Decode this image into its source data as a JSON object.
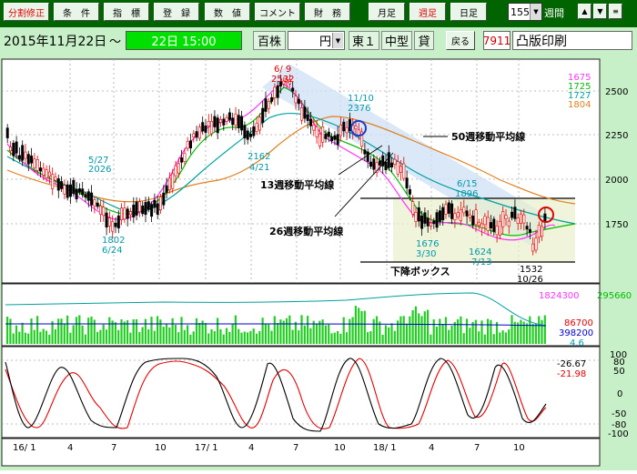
{
  "toolbar": {
    "buttons": [
      {
        "label": "分割修正",
        "red": true
      },
      {
        "label": "条　件",
        "red": false
      },
      {
        "label": "指　標",
        "red": false
      },
      {
        "label": "登　録",
        "red": false
      },
      {
        "label": "数　値",
        "red": false
      },
      {
        "label": "コメント",
        "red": false
      },
      {
        "label": "財　務",
        "red": false
      },
      {
        "label": "月足",
        "red": false
      },
      {
        "label": "週足",
        "red": true
      },
      {
        "label": "日足",
        "red": false
      }
    ],
    "period_count": "155",
    "period_unit": "週間",
    "up_arrow": "▲",
    "down_arrow": "▼",
    "menu": "≡"
  },
  "infobar": {
    "date": "2015年11月22日",
    "tilde": "～",
    "end": "22日 15:00",
    "unit": "百株",
    "currency": "円",
    "market": "東１",
    "size": "中型",
    "lending": "貸",
    "back_label": "戻る",
    "code": "7911",
    "name": "凸版印刷"
  },
  "price_panel": {
    "y_labels": [
      "2500",
      "2250",
      "2000",
      "1750"
    ],
    "legend": [
      {
        "text": "1675",
        "color": "#ff33ff"
      },
      {
        "text": "1725",
        "color": "#00bb00"
      },
      {
        "text": "1727",
        "color": "#00a0a0"
      },
      {
        "text": "1804",
        "color": "#e08020"
      }
    ],
    "annotations": [
      {
        "text": "6/ 9",
        "color": "#e00000"
      },
      {
        "text": "2532",
        "color": "#e00000"
      },
      {
        "text": "11/10",
        "color": "#0099aa"
      },
      {
        "text": "2376",
        "color": "#0099aa"
      },
      {
        "text": "5/27",
        "color": "#0099aa"
      },
      {
        "text": "2026",
        "color": "#0099aa"
      },
      {
        "text": "2162",
        "color": "#0099aa"
      },
      {
        "text": "4/21",
        "color": "#0099aa"
      },
      {
        "text": "1802",
        "color": "#0099aa"
      },
      {
        "text": "6/24",
        "color": "#0099aa"
      },
      {
        "text": "6/15",
        "color": "#0099aa"
      },
      {
        "text": "1896",
        "color": "#0099aa"
      },
      {
        "text": "1676",
        "color": "#0099aa"
      },
      {
        "text": "3/30",
        "color": "#0099aa"
      },
      {
        "text": "1624",
        "color": "#0099aa"
      },
      {
        "text": "7/13",
        "color": "#0099aa"
      },
      {
        "text": "1532",
        "color": "#000000"
      },
      {
        "text": "10/26",
        "color": "#000000"
      }
    ],
    "ma_labels": [
      "50週移動平均線",
      "13週移動平均線",
      "26週移動平均線"
    ],
    "box_label": "下降ボックス"
  },
  "volume_panel": {
    "values": [
      {
        "text": "1824300",
        "color": "#ff33ff"
      },
      {
        "text": "295660",
        "color": "#00bb00"
      },
      {
        "text": "86700",
        "color": "#e00000"
      },
      {
        "text": "398200",
        "color": "#0000cc"
      },
      {
        "text": "4.6",
        "color": "#0099aa"
      }
    ]
  },
  "oscillator_panel": {
    "y_labels": [
      "100",
      "80",
      "50",
      "0",
      "-50",
      "-80",
      "-100"
    ],
    "values": [
      {
        "text": "-26.67",
        "color": "#000000"
      },
      {
        "text": "-21.98",
        "color": "#e00000"
      }
    ]
  },
  "x_axis": [
    "16/ 1",
    "4",
    "7",
    "10",
    "17/ 1",
    "4",
    "7",
    "10",
    "18/ 1",
    "4",
    "7",
    "10"
  ]
}
